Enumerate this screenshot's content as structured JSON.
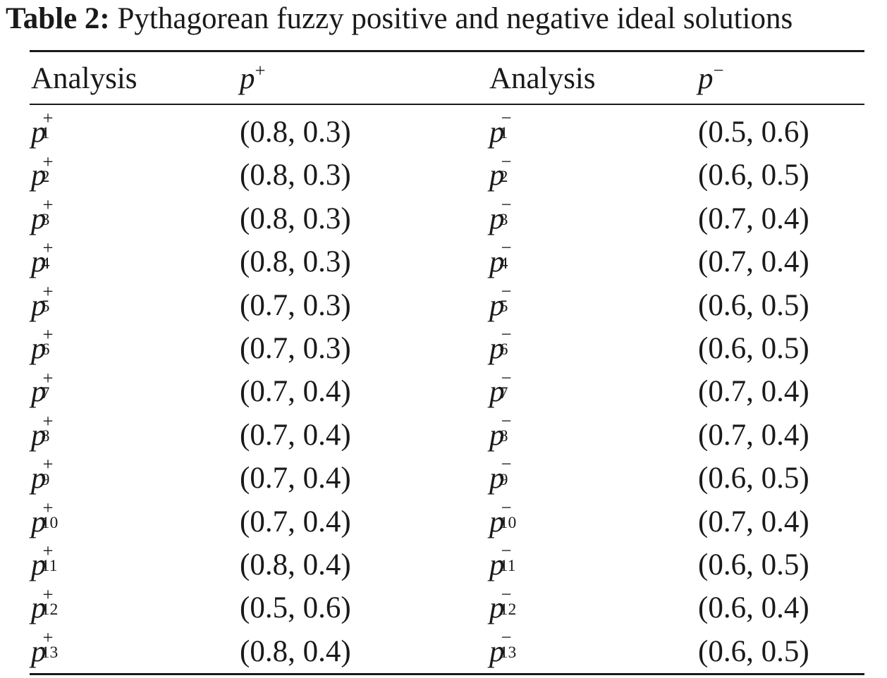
{
  "caption": {
    "label": "Table 2:",
    "text": "Pythagorean fuzzy positive and negative ideal solutions"
  },
  "header": {
    "col1": "Analysis",
    "col2_base": "p",
    "col2_sup": "+",
    "col3": "Analysis",
    "col4_base": "p",
    "col4_sup": "−"
  },
  "rows": [
    {
      "pos_base": "p",
      "pos_sup": "+",
      "pos_sub": "1",
      "pos_value": "(0.8, 0.3)",
      "neg_base": "p",
      "neg_sup": "−",
      "neg_sub": "1",
      "neg_value": "(0.5, 0.6)"
    },
    {
      "pos_base": "p",
      "pos_sup": "+",
      "pos_sub": "2",
      "pos_value": "(0.8, 0.3)",
      "neg_base": "p",
      "neg_sup": "−",
      "neg_sub": "2",
      "neg_value": "(0.6, 0.5)"
    },
    {
      "pos_base": "p",
      "pos_sup": "+",
      "pos_sub": "3",
      "pos_value": "(0.8, 0.3)",
      "neg_base": "p",
      "neg_sup": "−",
      "neg_sub": "3",
      "neg_value": "(0.7, 0.4)"
    },
    {
      "pos_base": "p",
      "pos_sup": "+",
      "pos_sub": "4",
      "pos_value": "(0.8, 0.3)",
      "neg_base": "p",
      "neg_sup": "−",
      "neg_sub": "4",
      "neg_value": "(0.7, 0.4)"
    },
    {
      "pos_base": "p",
      "pos_sup": "+",
      "pos_sub": "5",
      "pos_value": "(0.7, 0.3)",
      "neg_base": "p",
      "neg_sup": "−",
      "neg_sub": "5",
      "neg_value": "(0.6, 0.5)"
    },
    {
      "pos_base": "p",
      "pos_sup": "+",
      "pos_sub": "6",
      "pos_value": "(0.7, 0.3)",
      "neg_base": "p",
      "neg_sup": "−",
      "neg_sub": "6",
      "neg_value": "(0.6, 0.5)"
    },
    {
      "pos_base": "p",
      "pos_sup": "+",
      "pos_sub": "7",
      "pos_value": "(0.7, 0.4)",
      "neg_base": "p",
      "neg_sup": "−",
      "neg_sub": "7",
      "neg_value": "(0.7, 0.4)"
    },
    {
      "pos_base": "p",
      "pos_sup": "+",
      "pos_sub": "8",
      "pos_value": "(0.7, 0.4)",
      "neg_base": "p",
      "neg_sup": "−",
      "neg_sub": "8",
      "neg_value": "(0.7, 0.4)"
    },
    {
      "pos_base": "p",
      "pos_sup": "+",
      "pos_sub": "9",
      "pos_value": "(0.7, 0.4)",
      "neg_base": "p",
      "neg_sup": "−",
      "neg_sub": "9",
      "neg_value": "(0.6, 0.5)"
    },
    {
      "pos_base": "p",
      "pos_sup": "+",
      "pos_sub": "10",
      "pos_value": "(0.7, 0.4)",
      "neg_base": "p",
      "neg_sup": "−",
      "neg_sub": "10",
      "neg_value": "(0.7, 0.4)"
    },
    {
      "pos_base": "p",
      "pos_sup": "+",
      "pos_sub": "11",
      "pos_value": "(0.8, 0.4)",
      "neg_base": "p",
      "neg_sup": "−",
      "neg_sub": "11",
      "neg_value": "(0.6, 0.5)"
    },
    {
      "pos_base": "p",
      "pos_sup": "+",
      "pos_sub": "12",
      "pos_value": "(0.5, 0.6)",
      "neg_base": "p",
      "neg_sup": "−",
      "neg_sub": "12",
      "neg_value": "(0.6, 0.4)"
    },
    {
      "pos_base": "p",
      "pos_sup": "+",
      "pos_sub": "13",
      "pos_value": "(0.8, 0.4)",
      "neg_base": "p",
      "neg_sup": "−",
      "neg_sub": "13",
      "neg_value": "(0.6, 0.5)"
    }
  ]
}
